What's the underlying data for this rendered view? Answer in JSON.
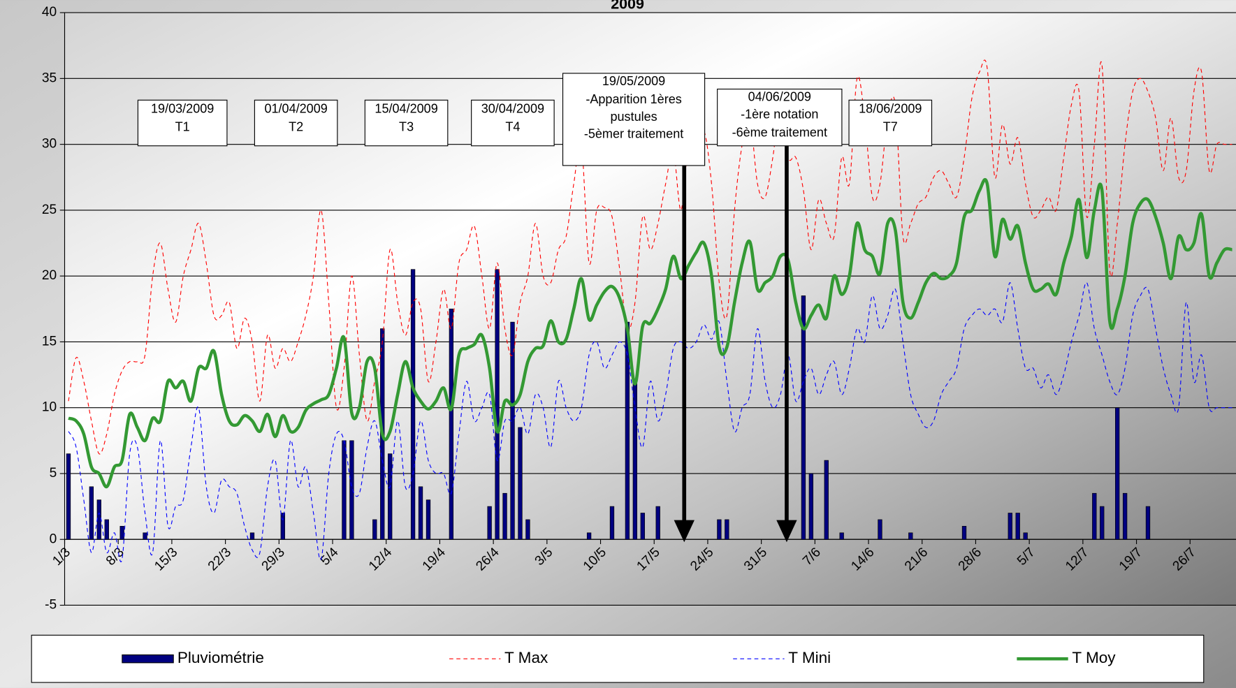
{
  "chart_data": {
    "type": "bar",
    "title": "2009",
    "categories": [
      "1/3",
      null,
      null,
      null,
      null,
      null,
      null,
      "8/3",
      null,
      null,
      null,
      null,
      null,
      null,
      "15/3",
      null,
      null,
      null,
      null,
      null,
      null,
      "22/3",
      null,
      null,
      null,
      null,
      null,
      null,
      "29/3",
      null,
      null,
      null,
      null,
      null,
      null,
      "5/4",
      null,
      null,
      null,
      null,
      null,
      null,
      "12/4",
      null,
      null,
      null,
      null,
      null,
      null,
      "19/4",
      null,
      null,
      null,
      null,
      null,
      null,
      "26/4",
      null,
      null,
      null,
      null,
      null,
      null,
      "3/5",
      null,
      null,
      null,
      null,
      null,
      null,
      "10/5",
      null,
      null,
      null,
      null,
      null,
      null,
      "17/5",
      null,
      null,
      null,
      null,
      null,
      null,
      "24/5",
      null,
      null,
      null,
      null,
      null,
      null,
      "31/5",
      null,
      null,
      null,
      null,
      null,
      null,
      "7/6",
      null,
      null,
      null,
      null,
      null,
      null,
      "14/6",
      null,
      null,
      null,
      null,
      null,
      null,
      "21/6",
      null,
      null,
      null,
      null,
      null,
      null,
      "28/6",
      null,
      null,
      null,
      null,
      null,
      null,
      "5/7",
      null,
      null,
      null,
      null,
      null,
      null,
      "12/7",
      null,
      null,
      null,
      null,
      null,
      null,
      "19/7",
      null,
      null,
      null,
      null,
      null,
      null,
      "26/7",
      null,
      null,
      null,
      null,
      null
    ],
    "series": [
      {
        "name": "Pluviométrie",
        "type": "bar",
        "color": "#000080",
        "values": [
          6.5,
          0,
          0,
          4,
          3,
          1.5,
          0,
          1,
          0,
          0,
          0.5,
          0,
          0,
          0,
          0,
          0,
          0,
          0,
          0,
          0,
          0,
          0,
          0,
          0,
          0.5,
          0,
          0,
          0,
          2,
          0,
          0,
          0,
          0,
          0,
          0,
          0,
          7.5,
          7.5,
          0,
          0,
          1.5,
          16,
          6.5,
          0,
          0,
          20.5,
          4,
          3,
          0,
          0,
          17.5,
          0,
          0,
          0,
          0,
          2.5,
          20.5,
          3.5,
          16.5,
          8.5,
          1.5,
          0,
          0,
          0,
          0,
          0,
          0,
          0,
          0.5,
          0,
          0,
          2.5,
          0,
          16.5,
          12,
          2,
          0,
          2.5,
          0,
          0,
          0,
          0,
          0,
          0,
          0,
          1.5,
          1.5,
          0,
          0,
          0,
          0,
          0,
          0,
          0,
          0,
          0,
          18.5,
          5,
          0,
          6,
          0,
          0.5,
          0,
          0,
          0,
          0,
          1.5,
          0,
          0,
          0,
          0.5,
          0,
          0,
          0,
          0,
          0,
          0,
          1,
          0,
          0,
          0,
          0,
          0,
          2,
          2,
          0.5,
          0,
          0,
          0,
          0,
          0,
          0,
          0,
          0,
          3.5,
          2.5,
          0,
          10,
          3.5,
          0,
          0,
          2.5,
          0,
          0,
          0,
          0,
          0,
          0,
          0,
          0,
          0,
          0,
          0
        ]
      },
      {
        "name": "T Max",
        "type": "line",
        "dash": true,
        "color": "#ff0000",
        "values": [
          10.5,
          13.8,
          12,
          9,
          6.5,
          8,
          11,
          12.8,
          13.5,
          13.5,
          14,
          20,
          22.5,
          19,
          16.5,
          20,
          22,
          24,
          21,
          17,
          17,
          18,
          14.5,
          16.8,
          15,
          10.5,
          15.5,
          13,
          14.5,
          13.5,
          15,
          17,
          20,
          25,
          18,
          10,
          13,
          20,
          14,
          9,
          12,
          15,
          22,
          18,
          15.5,
          18,
          17.5,
          12,
          15,
          19,
          16,
          21,
          22,
          23.8,
          20,
          16,
          21,
          16,
          14,
          18,
          20,
          24,
          20,
          19.5,
          22,
          23,
          27,
          30,
          21,
          25,
          25.2,
          24.5,
          20.5,
          16,
          18,
          24.5,
          22,
          24,
          27,
          29.5,
          25,
          30,
          29,
          31,
          27,
          19.5,
          17,
          25,
          30,
          32,
          27,
          26,
          29,
          33,
          29,
          29,
          26.5,
          22,
          25.8,
          24,
          23,
          29,
          27,
          35,
          32,
          26,
          27,
          32,
          33,
          23,
          24,
          25.5,
          26,
          27.5,
          28,
          27,
          26,
          29,
          33.5,
          35.5,
          35.8,
          27.5,
          31.5,
          28.5,
          30.5,
          27,
          24.5,
          25,
          26,
          25,
          29,
          33,
          34,
          24.5,
          30,
          36,
          20.5,
          24,
          30,
          34,
          35,
          34,
          32,
          28,
          32,
          27.5,
          28,
          34,
          35.5,
          28,
          30,
          30,
          30
        ]
      },
      {
        "name": "T Mini",
        "type": "line",
        "dash": true,
        "color": "#0000ff",
        "values": [
          8.2,
          7,
          3,
          -1,
          2,
          -1,
          0.5,
          -1.5,
          6.5,
          7,
          2,
          -1,
          7.5,
          1,
          2.5,
          3,
          7,
          10,
          4,
          2,
          4.5,
          4,
          3.5,
          1,
          -0.8,
          -1,
          4,
          6,
          1.5,
          7.5,
          4,
          5.5,
          2,
          -1.5,
          5,
          8,
          7.5,
          4,
          3.5,
          7,
          9,
          6,
          4,
          9,
          4,
          5,
          9,
          6,
          5,
          5,
          3.5,
          8,
          12,
          9,
          10,
          11,
          6,
          9,
          9,
          10,
          8,
          11,
          10,
          7,
          12,
          10,
          9,
          10,
          14,
          15,
          13,
          14,
          15,
          14,
          10,
          7,
          12,
          9,
          11,
          14.5,
          15,
          14.5,
          15,
          16.3,
          15.2,
          16.5,
          12,
          8.2,
          10,
          11,
          16,
          12,
          10,
          11,
          14,
          10.5,
          12,
          13,
          11,
          12.5,
          13.5,
          11,
          13,
          16,
          15,
          18.5,
          16,
          17,
          19,
          15,
          11,
          9.5,
          8.5,
          9,
          11,
          12,
          13,
          16,
          17,
          17.5,
          17,
          17.5,
          16.5,
          19.5,
          16,
          13,
          13,
          11.5,
          12.5,
          11,
          12.5,
          15,
          17,
          19.5,
          16,
          14,
          12,
          11,
          13,
          17,
          18.5,
          19,
          16,
          13,
          11,
          10,
          18,
          12,
          14,
          10,
          10,
          10,
          10
        ]
      },
      {
        "name": "T Moy",
        "type": "line",
        "dash": false,
        "color": "#339933",
        "values": [
          9.2,
          9,
          8,
          5.5,
          5,
          4,
          5.5,
          6,
          9.5,
          8.5,
          7.5,
          9.2,
          9,
          12,
          11.5,
          12,
          10.5,
          13,
          13,
          14.3,
          11,
          9,
          8.7,
          9.4,
          9,
          8.2,
          9.5,
          7.8,
          9.4,
          8.2,
          8.5,
          9.8,
          10.3,
          10.6,
          11,
          13,
          15.3,
          9.6,
          10,
          13.5,
          13,
          8,
          8.2,
          11,
          13.5,
          11.5,
          10.5,
          9.9,
          10.5,
          11.5,
          9.9,
          14,
          14.5,
          14.8,
          15.5,
          13,
          8.2,
          10.5,
          10.2,
          11,
          13.5,
          14.5,
          14.7,
          16.6,
          15,
          15.2,
          17.5,
          19.8,
          16.7,
          17.8,
          18.8,
          19.2,
          18.3,
          16,
          11.8,
          16.2,
          16.4,
          17.5,
          19,
          21.5,
          19.8,
          20.8,
          21.8,
          22.5,
          20,
          14.6,
          14.6,
          18,
          21,
          22.6,
          19,
          19.5,
          20,
          21.5,
          21.2,
          18,
          16,
          17,
          17.8,
          16.8,
          20,
          18.6,
          20,
          24,
          22,
          21.5,
          20.2,
          24,
          23.5,
          18,
          16.8,
          18,
          19.5,
          20.2,
          19.8,
          20,
          21,
          24.5,
          25,
          26.5,
          27,
          21.5,
          24.3,
          22.8,
          23.8,
          21,
          19,
          19,
          19.4,
          18.6,
          21,
          23,
          25.8,
          21.4,
          25,
          26.5,
          16.6,
          17.5,
          20,
          24,
          25.5,
          25.8,
          24.5,
          22.5,
          19.8,
          23,
          22,
          22.5,
          24.7,
          20,
          21,
          22,
          22
        ]
      }
    ],
    "ylim": [
      -5,
      40
    ],
    "yticks": [
      -5,
      0,
      5,
      10,
      15,
      20,
      25,
      30,
      35,
      40
    ],
    "grid": true,
    "annotations": [
      {
        "lines": [
          "19/03/2009",
          "T1"
        ]
      },
      {
        "lines": [
          "01/04/2009",
          "T2"
        ]
      },
      {
        "lines": [
          "15/04/2009",
          "T3"
        ]
      },
      {
        "lines": [
          "30/04/2009",
          "T4"
        ]
      },
      {
        "lines": [
          "19/05/2009",
          "-Apparition 1ères",
          "pustules",
          "-5èmer traitement"
        ]
      },
      {
        "lines": [
          "04/06/2009",
          "-1ère notation",
          "-6ème traitement"
        ]
      },
      {
        "lines": [
          "18/06/2009",
          "T7"
        ]
      }
    ]
  }
}
